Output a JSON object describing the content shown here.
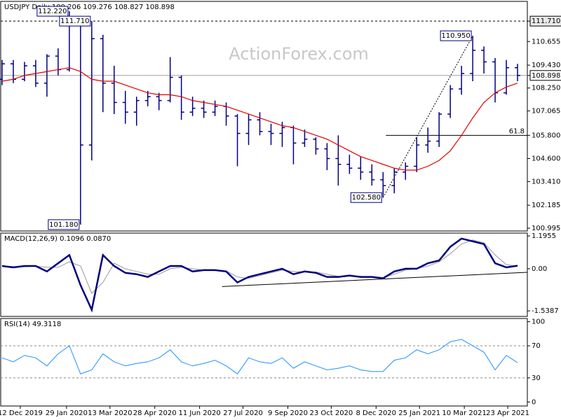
{
  "watermark": "ActionForex.com",
  "chart_data": [
    {
      "type": "ohlc",
      "title": "USDJPY Daily 109.206 109.276 108.827 108.898",
      "color": "#000080",
      "xlim": [
        -1,
        375
      ],
      "ylim": [
        100.85,
        112.73
      ],
      "yticks": [
        {
          "value": 111.71,
          "label": "111.710"
        },
        110.655,
        {
          "value": 109.43,
          "label": "109.430"
        },
        108.898,
        {
          "value": 108.25,
          "label": "108.250"
        },
        107.065,
        {
          "value": 105.8,
          "label": "105.800"
        },
        {
          "value": 104.6,
          "label": "104.600"
        },
        {
          "value": 103.41,
          "label": "103.410"
        },
        102.185,
        100.995
      ],
      "x": [
        0,
        8,
        16,
        24,
        32,
        40,
        48,
        56,
        64,
        72,
        80,
        88,
        96,
        104,
        112,
        120,
        128,
        136,
        144,
        152,
        160,
        168,
        176,
        184,
        192,
        200,
        208,
        216,
        224,
        232,
        240,
        248,
        256,
        264,
        272,
        280,
        288,
        296,
        304,
        312,
        320,
        328,
        336,
        344,
        352,
        360,
        368
      ],
      "open": [
        108.7,
        109.5,
        108.7,
        109.4,
        108.5,
        109.9,
        109.2,
        111.6,
        105.3,
        110.8,
        108.5,
        107.5,
        107.0,
        107.6,
        107.8,
        107.6,
        108.8,
        107.0,
        107.2,
        107.0,
        107.3,
        106.8,
        105.9,
        106.6,
        106.0,
        105.9,
        106.2,
        105.4,
        105.6,
        105.1,
        104.6,
        104.3,
        104.1,
        103.9,
        103.5,
        103.2,
        103.9,
        104.2,
        105.3,
        105.5,
        106.9,
        108.2,
        109.0,
        110.2,
        109.6,
        108.0,
        109.3
      ],
      "high": [
        109.7,
        109.7,
        109.6,
        109.7,
        110.0,
        110.3,
        112.22,
        111.8,
        111.71,
        111.0,
        109.4,
        108.1,
        107.8,
        108.1,
        108.0,
        109.85,
        108.9,
        107.8,
        107.6,
        107.6,
        107.5,
        106.9,
        106.9,
        107.0,
        106.4,
        106.5,
        106.3,
        106.1,
        105.7,
        105.4,
        105.8,
        104.8,
        104.7,
        104.3,
        103.9,
        104.1,
        104.4,
        105.7,
        106.2,
        107.0,
        108.4,
        109.4,
        110.95,
        110.4,
        109.8,
        109.7,
        109.5
      ],
      "low": [
        108.4,
        108.5,
        108.6,
        108.3,
        107.8,
        108.9,
        109.1,
        101.18,
        104.5,
        107.0,
        106.9,
        106.4,
        106.3,
        107.3,
        107.1,
        107.5,
        106.6,
        106.8,
        106.7,
        106.8,
        106.3,
        104.2,
        105.3,
        105.8,
        105.3,
        105.2,
        104.3,
        105.2,
        104.8,
        104.0,
        103.2,
        103.8,
        103.5,
        103.2,
        102.58,
        102.8,
        103.5,
        103.9,
        104.9,
        105.2,
        106.7,
        107.9,
        108.6,
        109.0,
        107.5,
        107.9,
        108.6
      ],
      "close": [
        109.5,
        108.7,
        109.4,
        108.5,
        109.9,
        109.2,
        111.6,
        105.3,
        110.8,
        108.5,
        107.5,
        107.0,
        107.6,
        107.8,
        107.6,
        108.8,
        107.0,
        107.2,
        107.0,
        107.3,
        106.8,
        105.9,
        106.6,
        106.0,
        105.9,
        106.2,
        105.4,
        105.6,
        105.1,
        104.6,
        104.3,
        104.1,
        103.9,
        103.5,
        103.2,
        103.9,
        104.2,
        105.3,
        105.5,
        106.9,
        108.2,
        109.0,
        110.2,
        109.6,
        108.0,
        109.3,
        108.9
      ],
      "ma_color": "#e00000",
      "ma_values": [
        108.6,
        108.7,
        108.9,
        109.0,
        109.1,
        109.2,
        109.3,
        109.1,
        108.7,
        108.6,
        108.6,
        108.4,
        108.2,
        108.0,
        107.9,
        107.9,
        107.8,
        107.6,
        107.5,
        107.4,
        107.3,
        107.1,
        106.9,
        106.7,
        106.5,
        106.3,
        106.2,
        106.0,
        105.8,
        105.6,
        105.3,
        105.0,
        104.7,
        104.5,
        104.3,
        104.1,
        104.0,
        104.0,
        104.2,
        104.5,
        105.0,
        105.8,
        106.7,
        107.5,
        108.0,
        108.3,
        108.5
      ],
      "reference_lines": [
        {
          "value": 111.71,
          "style": "dashed",
          "color": "#000000"
        },
        {
          "value": 108.898,
          "style": "solid",
          "color": "#a0a0a0"
        }
      ],
      "fib": {
        "label": "61.8",
        "value": 105.8,
        "x": [
          274,
          375
        ]
      },
      "trend": {
        "x": [
          272,
          336
        ],
        "y": [
          102.58,
          110.95
        ]
      },
      "annotations": [
        {
          "text": "112.220",
          "x": 48,
          "y": 112.22
        },
        {
          "text": "111.710",
          "x": 64,
          "y": 111.71
        },
        {
          "text": "101.180",
          "x": 56,
          "y": 101.18
        },
        {
          "text": "110.950",
          "x": 336,
          "y": 110.95
        },
        {
          "text": "102.580",
          "x": 272,
          "y": 102.58
        }
      ]
    },
    {
      "type": "macd",
      "title": "MACD(12,26,9) 0.1096 0.0870",
      "color": "#000080",
      "signal_color": "#9a9a9a",
      "xlim": [
        -1,
        375
      ],
      "ylim": [
        -1.74,
        1.3
      ],
      "yticks": [
        1.1955,
        {
          "value": 0,
          "label": "0.00"
        },
        -1.5387
      ],
      "x": [
        0,
        8,
        16,
        24,
        32,
        40,
        48,
        56,
        64,
        72,
        80,
        88,
        96,
        104,
        112,
        120,
        128,
        136,
        144,
        152,
        160,
        168,
        176,
        184,
        192,
        200,
        208,
        216,
        224,
        232,
        240,
        248,
        256,
        264,
        272,
        280,
        288,
        296,
        304,
        312,
        320,
        328,
        336,
        344,
        352,
        360,
        368
      ],
      "values": [
        0.1,
        0.05,
        0.1,
        0.1,
        -0.1,
        0.2,
        0.5,
        -0.6,
        -1.5,
        0.5,
        0.1,
        -0.15,
        -0.2,
        -0.3,
        -0.1,
        0.1,
        0.1,
        -0.1,
        -0.05,
        -0.05,
        -0.1,
        -0.5,
        -0.3,
        -0.2,
        -0.1,
        0.0,
        -0.2,
        -0.1,
        -0.15,
        -0.3,
        -0.3,
        -0.25,
        -0.3,
        -0.3,
        -0.35,
        -0.1,
        0.0,
        0.0,
        0.2,
        0.3,
        0.8,
        1.1,
        1.0,
        0.9,
        0.2,
        0.05,
        0.11
      ],
      "signal": [
        0.1,
        0.08,
        0.07,
        0.1,
        0.05,
        0.05,
        0.25,
        0.1,
        -0.9,
        -0.5,
        0.2,
        0.0,
        -0.1,
        -0.2,
        -0.2,
        0.0,
        0.05,
        0.0,
        -0.05,
        -0.05,
        -0.08,
        -0.3,
        -0.35,
        -0.25,
        -0.15,
        -0.05,
        -0.1,
        -0.12,
        -0.12,
        -0.2,
        -0.28,
        -0.27,
        -0.28,
        -0.3,
        -0.32,
        -0.2,
        -0.05,
        0.0,
        0.1,
        0.25,
        0.55,
        0.9,
        1.05,
        0.95,
        0.5,
        0.15,
        0.09
      ],
      "trend": {
        "x": [
          157,
          375
        ],
        "y": [
          -0.65,
          -0.13
        ]
      }
    },
    {
      "type": "rsi",
      "title": "RSI(14) 49.3118",
      "color": "#1e90ff",
      "xlim": [
        -1,
        375
      ],
      "ylim": [
        -5,
        104
      ],
      "yticks": [
        100,
        70,
        30,
        0
      ],
      "levels": [
        70,
        30
      ],
      "x": [
        0,
        8,
        16,
        24,
        32,
        40,
        48,
        56,
        64,
        72,
        80,
        88,
        96,
        104,
        112,
        120,
        128,
        136,
        144,
        152,
        160,
        168,
        176,
        184,
        192,
        200,
        208,
        216,
        224,
        232,
        240,
        248,
        256,
        264,
        272,
        280,
        288,
        296,
        304,
        312,
        320,
        328,
        336,
        344,
        352,
        360,
        368
      ],
      "values": [
        55,
        50,
        58,
        55,
        45,
        60,
        70,
        35,
        40,
        60,
        50,
        45,
        48,
        50,
        55,
        65,
        50,
        45,
        48,
        52,
        45,
        35,
        55,
        50,
        48,
        55,
        42,
        50,
        45,
        40,
        42,
        45,
        40,
        38,
        38,
        52,
        55,
        65,
        60,
        65,
        75,
        78,
        70,
        62,
        40,
        58,
        49
      ],
      "xticks": [
        {
          "value": 13,
          "label": "12 Dec 2019"
        },
        {
          "value": 46,
          "label": "29 Jan 2020"
        },
        {
          "value": 77,
          "label": "13 Mar 2020"
        },
        {
          "value": 109,
          "label": "28 Apr 2020"
        },
        {
          "value": 141,
          "label": "11 Jun 2020"
        },
        {
          "value": 172,
          "label": "27 Jul 2020"
        },
        {
          "value": 204,
          "label": "9 Sep 2020"
        },
        {
          "value": 235,
          "label": "23 Oct 2020"
        },
        {
          "value": 267,
          "label": "8 Dec 2020"
        },
        {
          "value": 298,
          "label": "25 Jan 2021"
        },
        {
          "value": 330,
          "label": "10 Mar 2021"
        },
        {
          "value": 361,
          "label": "23 Apr 2021"
        }
      ]
    }
  ]
}
